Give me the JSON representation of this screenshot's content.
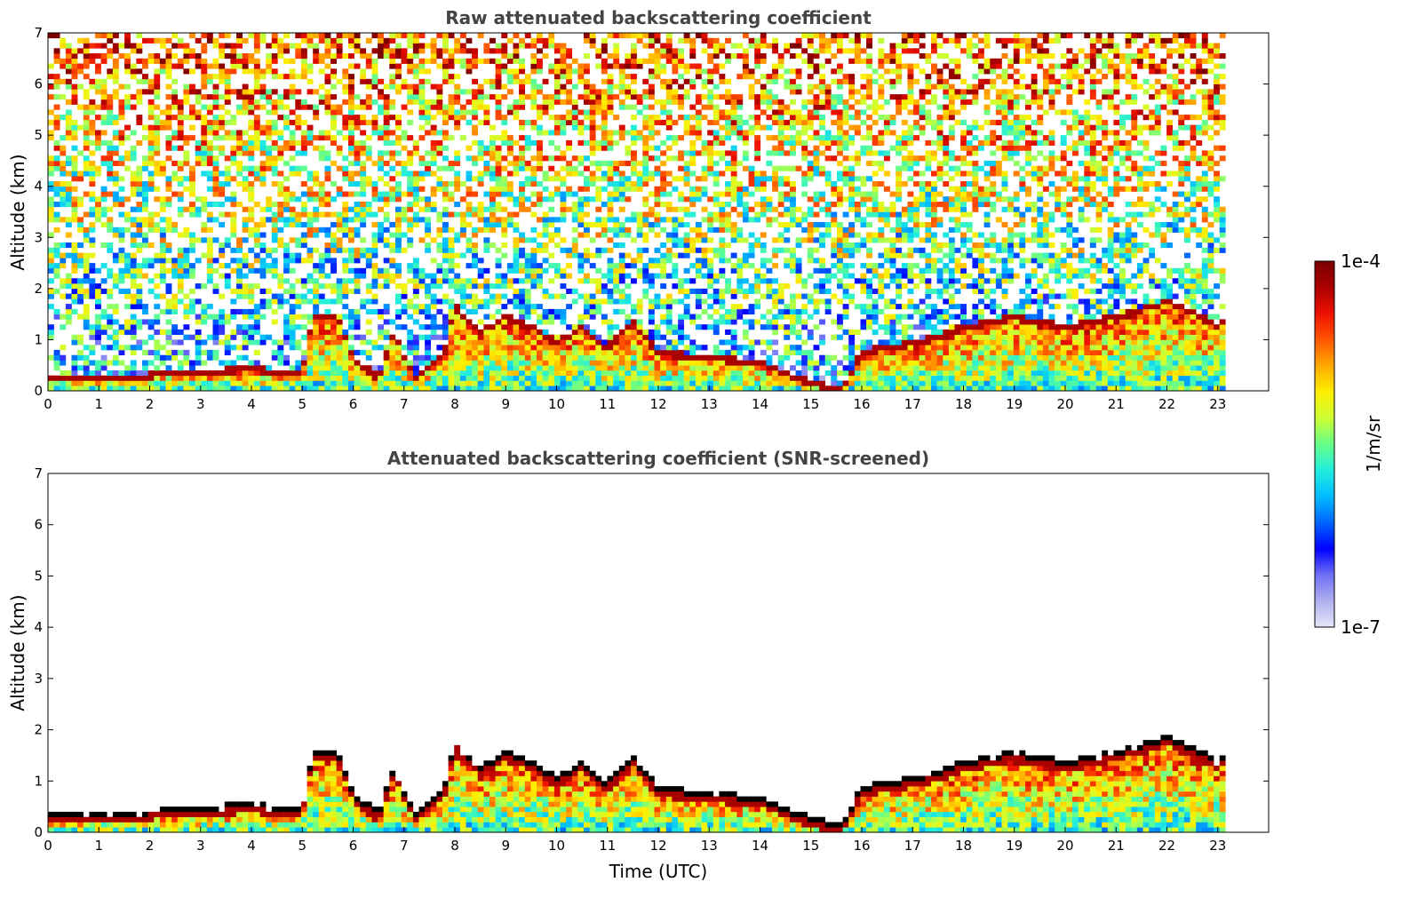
{
  "chart_data": [
    {
      "type": "heatmap",
      "title": "Raw attenuated backscattering coefficient",
      "xlabel": "",
      "ylabel": "Altitude (km)",
      "xlim": [
        0,
        24
      ],
      "ylim": [
        0,
        7
      ],
      "x_ticks": [
        "0",
        "1",
        "2",
        "3",
        "4",
        "5",
        "6",
        "7",
        "8",
        "9",
        "10",
        "11",
        "12",
        "13",
        "14",
        "15",
        "16",
        "17",
        "18",
        "19",
        "20",
        "21",
        "22",
        "23"
      ],
      "y_ticks": [
        "0",
        "1",
        "2",
        "3",
        "4",
        "5",
        "6",
        "7"
      ],
      "data_time_range": [
        0,
        23.15
      ],
      "screened": false,
      "boundary_layer_top_km": [
        [
          0,
          0.33
        ],
        [
          1,
          0.3
        ],
        [
          1.5,
          0.3
        ],
        [
          2,
          0.35
        ],
        [
          2.7,
          0.45
        ],
        [
          3,
          0.4
        ],
        [
          3.5,
          0.45
        ],
        [
          4,
          0.5
        ],
        [
          4.5,
          0.4
        ],
        [
          5,
          0.4
        ],
        [
          5.2,
          1.5
        ],
        [
          5.7,
          1.5
        ],
        [
          6,
          0.7
        ],
        [
          6.5,
          0.3
        ],
        [
          6.8,
          1.2
        ],
        [
          7.2,
          0.3
        ],
        [
          7.8,
          0.8
        ],
        [
          8,
          1.7
        ],
        [
          8.5,
          1.2
        ],
        [
          9,
          1.5
        ],
        [
          9.5,
          1.3
        ],
        [
          10,
          1.0
        ],
        [
          10.5,
          1.3
        ],
        [
          11,
          0.9
        ],
        [
          11.5,
          1.4
        ],
        [
          12,
          0.8
        ],
        [
          13,
          0.7
        ],
        [
          14,
          0.6
        ],
        [
          14.5,
          0.4
        ],
        [
          15,
          0.2
        ],
        [
          15.6,
          0.1
        ],
        [
          16,
          0.8
        ],
        [
          17,
          1.0
        ],
        [
          17.5,
          1.1
        ],
        [
          18,
          1.3
        ],
        [
          18.5,
          1.4
        ],
        [
          19,
          1.5
        ],
        [
          20,
          1.3
        ],
        [
          20.5,
          1.4
        ],
        [
          21,
          1.5
        ],
        [
          22,
          1.8
        ],
        [
          22.5,
          1.6
        ],
        [
          23,
          1.3
        ],
        [
          23.15,
          1.5
        ]
      ]
    },
    {
      "type": "heatmap",
      "title": "Attenuated backscattering coefficient (SNR-screened)",
      "xlabel": "Time (UTC)",
      "ylabel": "Altitude (km)",
      "xlim": [
        0,
        24
      ],
      "ylim": [
        0,
        7
      ],
      "x_ticks": [
        "0",
        "1",
        "2",
        "3",
        "4",
        "5",
        "6",
        "7",
        "8",
        "9",
        "10",
        "11",
        "12",
        "13",
        "14",
        "15",
        "16",
        "17",
        "18",
        "19",
        "20",
        "21",
        "22",
        "23"
      ],
      "y_ticks": [
        "0",
        "1",
        "2",
        "3",
        "4",
        "5",
        "6",
        "7"
      ],
      "data_time_range": [
        0,
        23.15
      ],
      "screened": true,
      "boundary_layer_top_km": [
        [
          0,
          0.33
        ],
        [
          1,
          0.3
        ],
        [
          1.5,
          0.3
        ],
        [
          2,
          0.35
        ],
        [
          2.7,
          0.45
        ],
        [
          3,
          0.4
        ],
        [
          3.5,
          0.45
        ],
        [
          4,
          0.5
        ],
        [
          4.5,
          0.4
        ],
        [
          5,
          0.4
        ],
        [
          5.2,
          1.5
        ],
        [
          5.7,
          1.5
        ],
        [
          6,
          0.7
        ],
        [
          6.5,
          0.3
        ],
        [
          6.8,
          1.2
        ],
        [
          7.2,
          0.3
        ],
        [
          7.8,
          0.8
        ],
        [
          8,
          1.7
        ],
        [
          8.5,
          1.2
        ],
        [
          9,
          1.5
        ],
        [
          9.5,
          1.3
        ],
        [
          10,
          1.0
        ],
        [
          10.5,
          1.3
        ],
        [
          11,
          0.9
        ],
        [
          11.5,
          1.4
        ],
        [
          12,
          0.8
        ],
        [
          13,
          0.7
        ],
        [
          14,
          0.6
        ],
        [
          14.5,
          0.4
        ],
        [
          15,
          0.2
        ],
        [
          15.6,
          0.1
        ],
        [
          16,
          0.8
        ],
        [
          17,
          1.0
        ],
        [
          17.5,
          1.1
        ],
        [
          18,
          1.3
        ],
        [
          18.5,
          1.4
        ],
        [
          19,
          1.5
        ],
        [
          20,
          1.3
        ],
        [
          20.5,
          1.4
        ],
        [
          21,
          1.5
        ],
        [
          22,
          1.8
        ],
        [
          22.5,
          1.6
        ],
        [
          23,
          1.3
        ],
        [
          23.15,
          1.5
        ]
      ]
    }
  ],
  "colorbar": {
    "max_label": "1e-4",
    "min_label": "1e-7",
    "unit_label": "1/m/sr",
    "scale": "log",
    "colormap": [
      "#e6e6f8",
      "#b0b0f0",
      "#6f6ff5",
      "#0000ff",
      "#0066ff",
      "#00bbff",
      "#22eedd",
      "#66ff88",
      "#ccff33",
      "#ffee00",
      "#ffaa00",
      "#ff5500",
      "#ee1100",
      "#aa0000",
      "#7a0000"
    ]
  }
}
